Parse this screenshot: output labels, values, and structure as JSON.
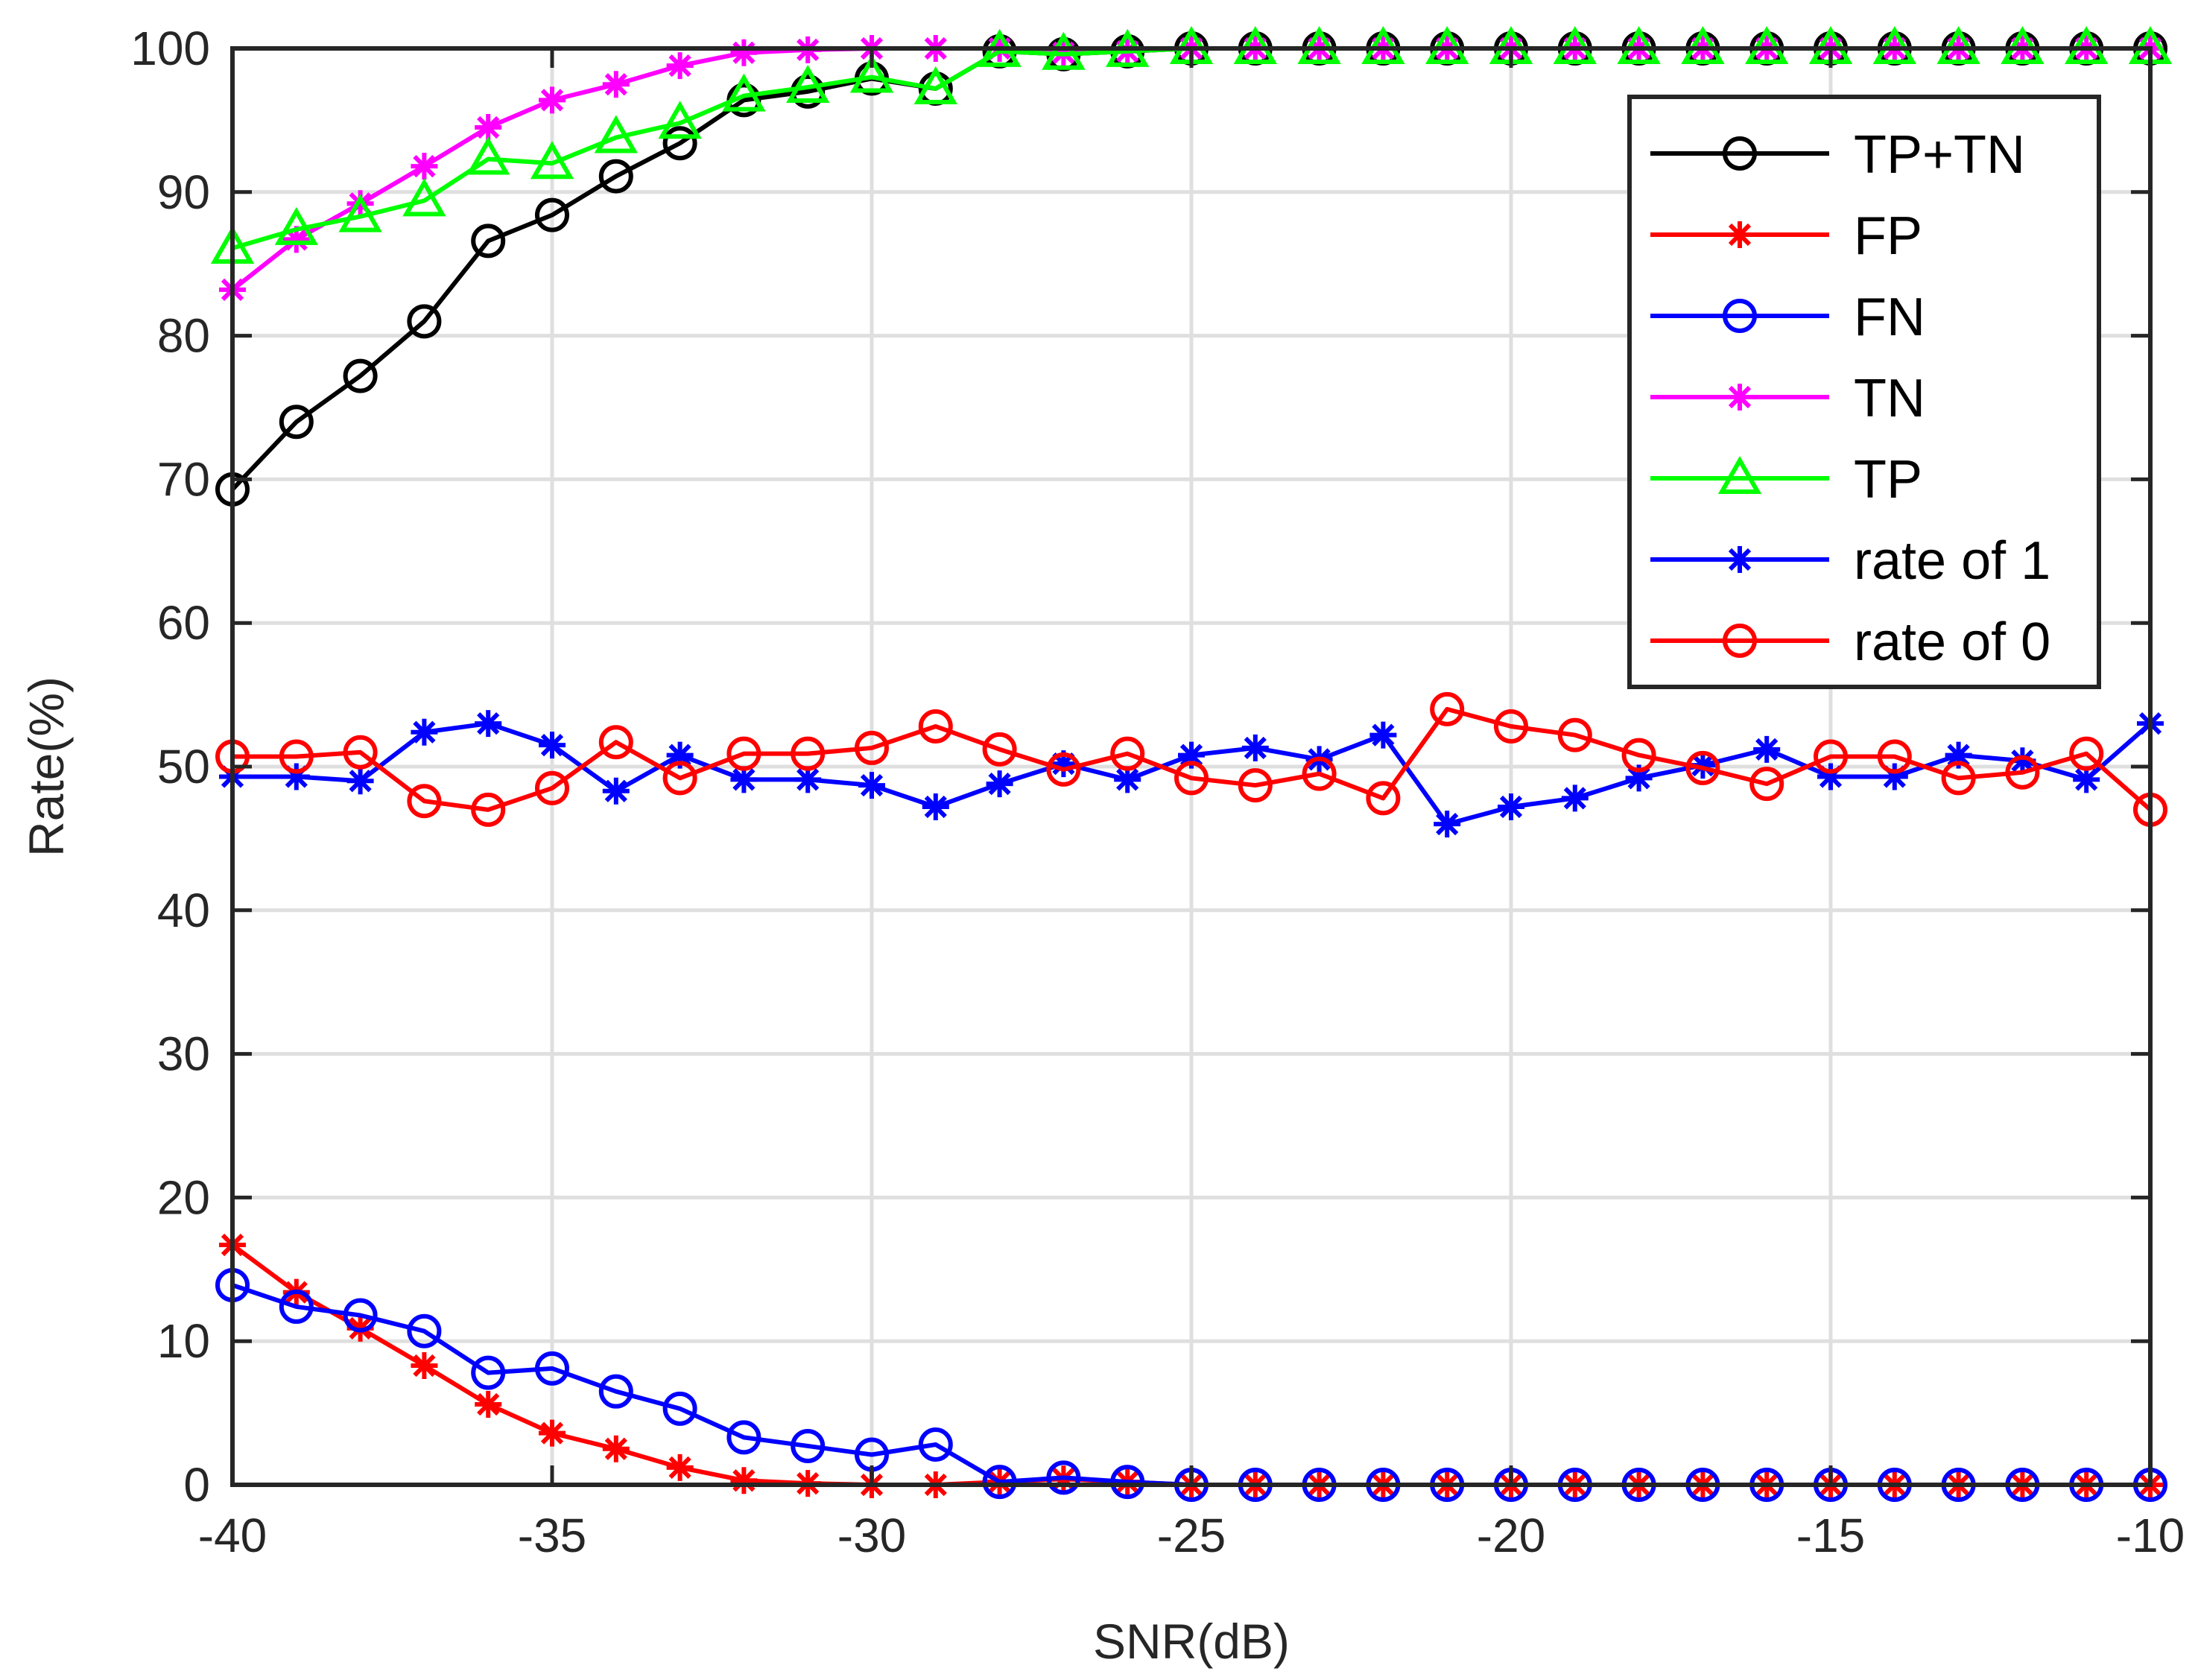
{
  "chart_data": {
    "type": "line",
    "title": "",
    "xlabel": "SNR(dB)",
    "ylabel": "Rate(%)",
    "xlim": [
      -40,
      -10
    ],
    "ylim": [
      0,
      100
    ],
    "grid": true,
    "legend_position": "top-right",
    "xticks": [
      -40,
      -35,
      -30,
      -25,
      -20,
      -15,
      -10
    ],
    "xtick_labels": [
      "-40",
      "-35",
      "-30",
      "-25",
      "-20",
      "-15",
      "-10"
    ],
    "yticks": [
      0,
      10,
      20,
      30,
      40,
      50,
      60,
      70,
      80,
      90,
      100
    ],
    "ytick_labels": [
      "0",
      "10",
      "20",
      "30",
      "40",
      "50",
      "60",
      "70",
      "80",
      "90",
      "100"
    ],
    "x": [
      -40,
      -39,
      -38,
      -37,
      -36,
      -35,
      -34,
      -33,
      -32,
      -31,
      -30,
      -29,
      -28,
      -27,
      -26,
      -25,
      -24,
      -23,
      -22,
      -21,
      -20,
      -19,
      -18,
      -17,
      -16,
      -15,
      -14,
      -13,
      -12,
      -11,
      -10
    ],
    "series": [
      {
        "name": "TP+TN",
        "color": "#000000",
        "marker": "circle",
        "values": [
          69.3,
          74.0,
          77.2,
          81.0,
          86.6,
          88.4,
          91.1,
          93.4,
          96.4,
          97.0,
          97.9,
          97.2,
          99.8,
          99.6,
          99.8,
          100,
          100,
          100,
          100,
          100,
          100,
          100,
          100,
          100,
          100,
          100,
          100,
          100,
          100,
          100,
          100
        ]
      },
      {
        "name": "FP",
        "color": "#ff0000",
        "marker": "asterisk",
        "values": [
          16.7,
          13.4,
          10.9,
          8.3,
          5.6,
          3.6,
          2.5,
          1.2,
          0.3,
          0.1,
          0.0,
          0.0,
          0.2,
          0.4,
          0.2,
          0.0,
          0.0,
          0.0,
          0.0,
          0.0,
          0.0,
          0.0,
          0.0,
          0.0,
          0.0,
          0.0,
          0.0,
          0.0,
          0.0,
          0.0,
          0.0
        ]
      },
      {
        "name": "FN",
        "color": "#0000ff",
        "marker": "circle",
        "values": [
          13.9,
          12.4,
          11.8,
          10.7,
          7.8,
          8.1,
          6.5,
          5.3,
          3.3,
          2.7,
          2.1,
          2.8,
          0.2,
          0.5,
          0.2,
          0.0,
          0.0,
          0.0,
          0.0,
          0.0,
          0.0,
          0.0,
          0.0,
          0.0,
          0.0,
          0.0,
          0.0,
          0.0,
          0.0,
          0.0,
          0.0
        ]
      },
      {
        "name": "TN",
        "color": "#ff00ff",
        "marker": "asterisk",
        "values": [
          83.2,
          86.7,
          89.2,
          91.8,
          94.5,
          96.4,
          97.5,
          98.8,
          99.7,
          99.9,
          100,
          100,
          100,
          99.7,
          99.8,
          100,
          100,
          100,
          100,
          100,
          100,
          100,
          100,
          100,
          100,
          100,
          100,
          100,
          100,
          100,
          100
        ]
      },
      {
        "name": "TP",
        "color": "#00ff00",
        "marker": "triangle",
        "values": [
          86.1,
          87.4,
          88.3,
          89.4,
          92.3,
          92.0,
          93.8,
          94.8,
          96.7,
          97.3,
          98.0,
          97.2,
          99.8,
          99.6,
          99.8,
          100,
          100,
          100,
          100,
          100,
          100,
          100,
          100,
          100,
          100,
          100,
          100,
          100,
          100,
          100,
          100
        ]
      },
      {
        "name": "rate of 1",
        "color": "#0000ff",
        "marker": "asterisk",
        "values": [
          49.3,
          49.3,
          49.0,
          52.4,
          53.0,
          51.5,
          48.3,
          50.8,
          49.1,
          49.1,
          48.7,
          47.2,
          48.8,
          50.2,
          49.1,
          50.8,
          51.3,
          50.5,
          52.2,
          46.0,
          47.2,
          47.8,
          49.2,
          50.1,
          51.2,
          49.3,
          49.3,
          50.8,
          50.4,
          49.1,
          53.0
        ]
      },
      {
        "name": "rate of 0",
        "color": "#ff0000",
        "marker": "circle",
        "values": [
          50.7,
          50.7,
          51.0,
          47.6,
          47.0,
          48.5,
          51.7,
          49.2,
          50.9,
          50.9,
          51.3,
          52.8,
          51.2,
          49.8,
          50.9,
          49.2,
          48.7,
          49.5,
          47.8,
          54.0,
          52.8,
          52.2,
          50.8,
          49.9,
          48.8,
          50.7,
          50.7,
          49.2,
          49.6,
          50.9,
          47.0
        ]
      }
    ]
  }
}
